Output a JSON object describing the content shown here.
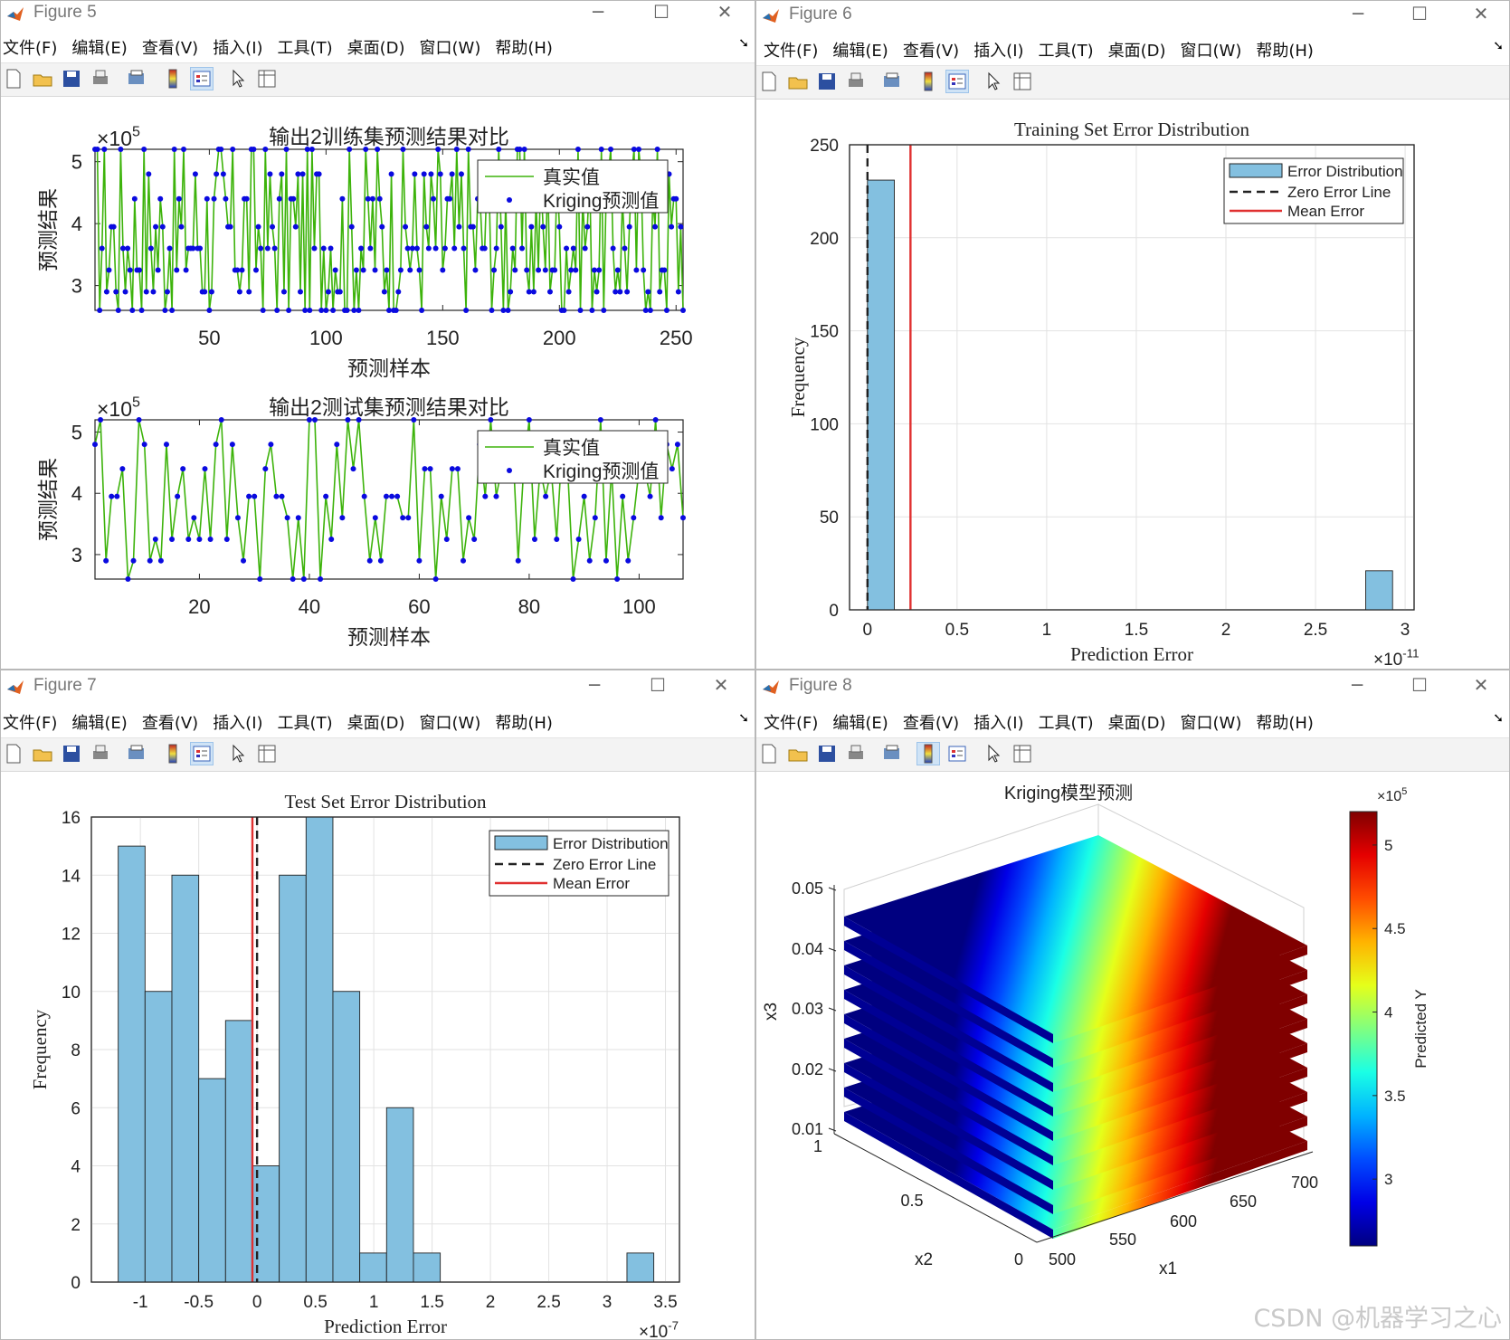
{
  "windows": {
    "fig5": {
      "title": "Figure 5"
    },
    "fig6": {
      "title": "Figure 6"
    },
    "fig7": {
      "title": "Figure 7"
    },
    "fig8": {
      "title": "Figure 8"
    }
  },
  "menu": [
    "文件(F)",
    "编辑(E)",
    "查看(V)",
    "插入(I)",
    "工具(T)",
    "桌面(D)",
    "窗口(W)",
    "帮助(H)"
  ],
  "icons": [
    "new-file-icon",
    "open-folder-icon",
    "save-icon",
    "print-icon",
    "print-preview-icon",
    "colorbar-icon",
    "legend-icon",
    "pointer-icon",
    "property-editor-icon"
  ],
  "colors": {
    "green": "#3db30b",
    "blue": "#0a0ae0",
    "bar": "#83c0e0",
    "red": "#e03030"
  },
  "watermark": "CSDN @机器学习之心",
  "chart_data": [
    {
      "id": "fig5_train",
      "type": "line",
      "title": "输出2训练集预测结果对比",
      "xlabel": "预测样本",
      "ylabel": "预测结果",
      "exponent": "×10",
      "exponent_power": "5",
      "xlim": [
        1,
        253
      ],
      "ylim": [
        2.6,
        5.2
      ],
      "xticks": [
        "50",
        "100",
        "150",
        "200",
        "250"
      ],
      "xtick_values": [
        50,
        100,
        150,
        200,
        250
      ],
      "yticks": [
        "3",
        "4",
        "5"
      ],
      "ytick_values": [
        3,
        4,
        5
      ],
      "legend": [
        "真实值",
        "Kriging预测值"
      ],
      "levels": [
        2.6,
        2.9,
        3.25,
        3.6,
        3.95,
        4.4,
        4.8,
        5.2
      ],
      "seed": 17,
      "n": 253
    },
    {
      "id": "fig5_test",
      "type": "line",
      "title": "输出2测试集预测结果对比",
      "xlabel": "预测样本",
      "ylabel": "预测结果",
      "exponent": "×10",
      "exponent_power": "5",
      "xlim": [
        1,
        108
      ],
      "ylim": [
        2.6,
        5.2
      ],
      "xticks": [
        "20",
        "40",
        "60",
        "80",
        "100"
      ],
      "xtick_values": [
        20,
        40,
        60,
        80,
        100
      ],
      "yticks": [
        "3",
        "4",
        "5"
      ],
      "ytick_values": [
        3,
        4,
        5
      ],
      "legend": [
        "真实值",
        "Kriging预测值"
      ],
      "levels": [
        2.6,
        2.9,
        3.25,
        3.6,
        3.95,
        4.4,
        4.8,
        5.2
      ],
      "seed": 41,
      "n": 108
    },
    {
      "id": "fig6_hist",
      "type": "bar",
      "title": "Training Set Error Distribution",
      "xlabel": "Prediction Error",
      "ylabel": "Frequency",
      "exponent": "×10",
      "exponent_power": "-11",
      "xlim": [
        -0.1,
        3.05
      ],
      "ylim": [
        0,
        250
      ],
      "xticks": [
        "0",
        "0.5",
        "1",
        "1.5",
        "2",
        "2.5",
        "3"
      ],
      "xtick_values": [
        0,
        0.5,
        1,
        1.5,
        2,
        2.5,
        3
      ],
      "yticks": [
        "0",
        "50",
        "100",
        "150",
        "200",
        "250"
      ],
      "ytick_values": [
        0,
        50,
        100,
        150,
        200,
        250
      ],
      "bin_edges": [
        0,
        0.15,
        2.78,
        2.93
      ],
      "bins": [
        {
          "start": 0,
          "end": 0.15,
          "count": 231
        },
        {
          "start": 2.78,
          "end": 2.93,
          "count": 21
        }
      ],
      "zero_line": 0,
      "mean_error": 0.24,
      "legend": [
        "Error Distribution",
        "Zero Error Line",
        "Mean Error"
      ]
    },
    {
      "id": "fig7_hist",
      "type": "bar",
      "title": "Test Set Error Distribution",
      "xlabel": "Prediction Error",
      "ylabel": "Frequency",
      "exponent": "×10",
      "exponent_power": "-7",
      "xlim": [
        -1.42,
        3.62
      ],
      "ylim": [
        0,
        16
      ],
      "xticks": [
        "-1",
        "-0.5",
        "0",
        "0.5",
        "1",
        "1.5",
        "2",
        "2.5",
        "3",
        "3.5"
      ],
      "xtick_values": [
        -1,
        -0.5,
        0,
        0.5,
        1,
        1.5,
        2,
        2.5,
        3,
        3.5
      ],
      "yticks": [
        "0",
        "2",
        "4",
        "6",
        "8",
        "10",
        "12",
        "14",
        "16"
      ],
      "ytick_values": [
        0,
        2,
        4,
        6,
        8,
        10,
        12,
        14,
        16
      ],
      "bins": [
        {
          "start": -1.19,
          "end": -0.96,
          "count": 15
        },
        {
          "start": -0.96,
          "end": -0.73,
          "count": 10
        },
        {
          "start": -0.73,
          "end": -0.5,
          "count": 14
        },
        {
          "start": -0.5,
          "end": -0.27,
          "count": 7
        },
        {
          "start": -0.27,
          "end": -0.04,
          "count": 9
        },
        {
          "start": -0.04,
          "end": 0.19,
          "count": 4
        },
        {
          "start": 0.19,
          "end": 0.42,
          "count": 14
        },
        {
          "start": 0.42,
          "end": 0.65,
          "count": 16
        },
        {
          "start": 0.65,
          "end": 0.88,
          "count": 10
        },
        {
          "start": 0.88,
          "end": 1.11,
          "count": 1
        },
        {
          "start": 1.11,
          "end": 1.34,
          "count": 6
        },
        {
          "start": 1.34,
          "end": 1.57,
          "count": 1
        },
        {
          "start": 3.17,
          "end": 3.4,
          "count": 1
        }
      ],
      "zero_line": 0,
      "mean_error": -0.04,
      "legend": [
        "Error Distribution",
        "Zero Error Line",
        "Mean Error"
      ]
    },
    {
      "id": "fig8_surface",
      "type": "heatmap",
      "title": "Kriging模型预测",
      "xlabel": "x1",
      "ylabel": "x2",
      "zlabel": "x3",
      "colorbar_label": "Predicted Y",
      "colorbar_exponent": "×10",
      "colorbar_exponent_power": "5",
      "colorbar_ticks": [
        "3",
        "3.5",
        "4",
        "4.5",
        "5"
      ],
      "colorbar_tick_values": [
        3,
        3.5,
        4,
        4.5,
        5
      ],
      "colorbar_range": [
        2.6,
        5.2
      ],
      "x1_ticks": [
        "500",
        "550",
        "600",
        "650",
        "700"
      ],
      "x2_ticks": [
        "0",
        "0.5",
        "1"
      ],
      "x3_ticks": [
        "0.01",
        "0.02",
        "0.03",
        "0.04",
        "0.05"
      ],
      "slice_count": 9,
      "colormap": "jet"
    }
  ]
}
